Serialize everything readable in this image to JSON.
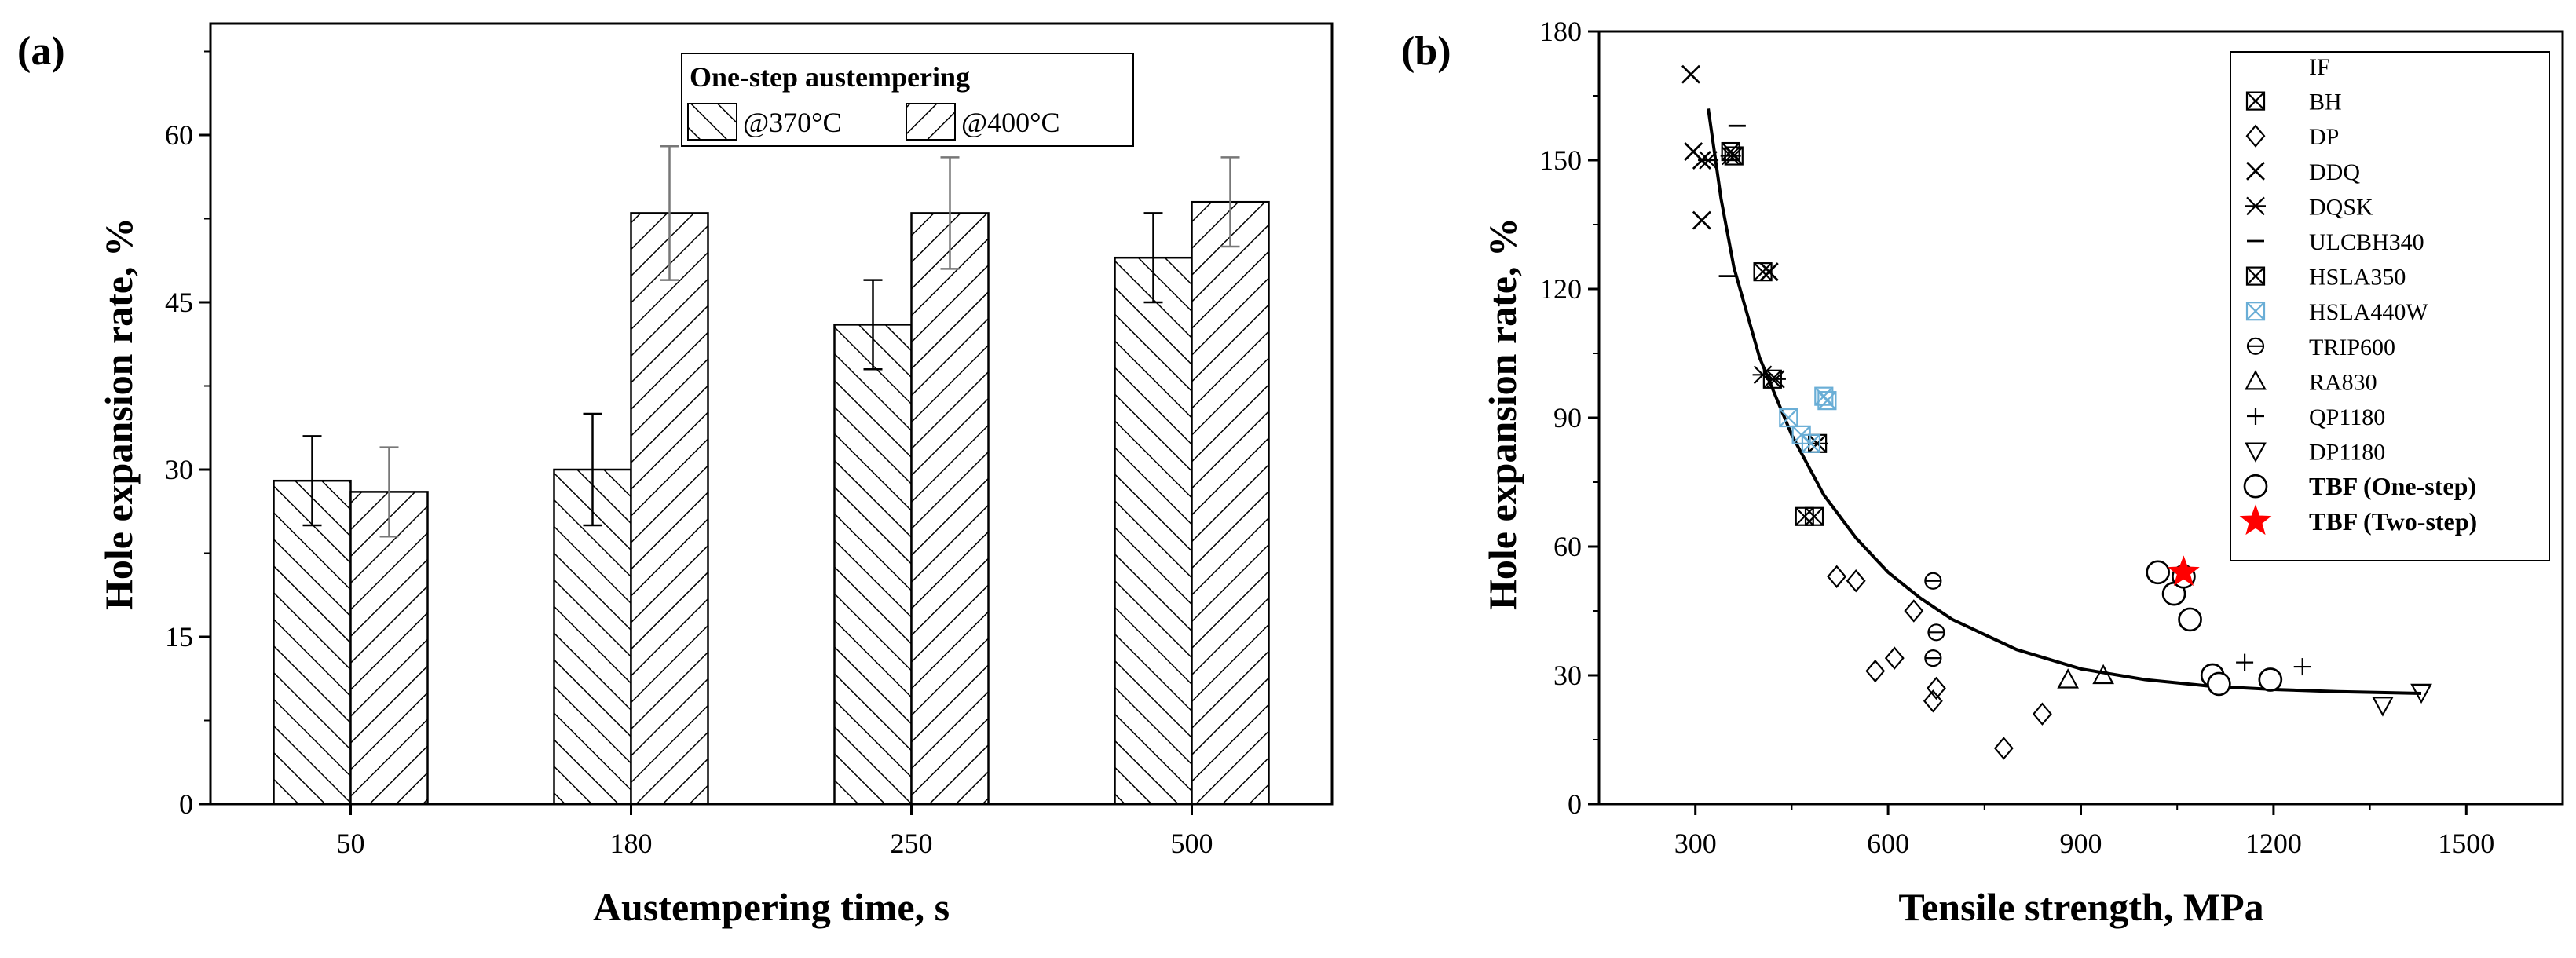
{
  "chart_data": [
    {
      "panel": "(a)",
      "type": "bar",
      "xlabel": "Austempering time, s",
      "ylabel": "Hole expansion rate, %",
      "categories": [
        "50",
        "180",
        "250",
        "500"
      ],
      "ylim": [
        0,
        70
      ],
      "yticks": [
        0,
        15,
        30,
        45,
        60
      ],
      "legend_title": "One-step austempering",
      "legend_position": "top-right",
      "series": [
        {
          "name": "@370°C",
          "hatch": "forward-diagonal",
          "values": [
            29,
            30,
            43,
            49
          ],
          "errors": [
            4,
            5,
            4,
            4
          ]
        },
        {
          "name": "@400°C",
          "hatch": "back-diagonal",
          "values": [
            28,
            53,
            53,
            54
          ],
          "errors": [
            4,
            6,
            5,
            4
          ]
        }
      ]
    },
    {
      "panel": "(b)",
      "type": "scatter",
      "xlabel": "Tensile strength, MPa",
      "ylabel": "Hole expansion rate, %",
      "xlim": [
        150,
        1650
      ],
      "ylim": [
        0,
        180
      ],
      "xticks": [
        300,
        600,
        900,
        1200,
        1500
      ],
      "yticks": [
        0,
        30,
        60,
        90,
        120,
        150,
        180
      ],
      "legend_position": "top-right",
      "fit_curve": {
        "description": "fitted trend line",
        "points": [
          [
            320,
            162
          ],
          [
            340,
            141
          ],
          [
            360,
            125
          ],
          [
            400,
            104
          ],
          [
            450,
            86
          ],
          [
            500,
            72
          ],
          [
            550,
            62
          ],
          [
            600,
            54
          ],
          [
            650,
            48
          ],
          [
            700,
            43
          ],
          [
            750,
            39.5
          ],
          [
            800,
            36
          ],
          [
            900,
            31.5
          ],
          [
            1000,
            29
          ],
          [
            1100,
            27.5
          ],
          [
            1200,
            26.7
          ],
          [
            1300,
            26.2
          ],
          [
            1430,
            25.8
          ]
        ]
      },
      "series": [
        {
          "name": "IF",
          "marker": "none",
          "color": "#000000",
          "points": []
        },
        {
          "name": "BH",
          "marker": "boxx",
          "color": "#000000",
          "points": [
            [
              355,
              152
            ],
            [
              360,
              151
            ]
          ]
        },
        {
          "name": "DP",
          "marker": "diamond",
          "color": "#000000",
          "points": [
            [
              520,
              53
            ],
            [
              550,
              52
            ],
            [
              580,
              31
            ],
            [
              610,
              34
            ],
            [
              640,
              45
            ],
            [
              670,
              24
            ],
            [
              675,
              27
            ],
            [
              780,
              13
            ],
            [
              840,
              21
            ]
          ]
        },
        {
          "name": "DDQ",
          "marker": "x",
          "color": "#000000",
          "points": [
            [
              293,
              170
            ],
            [
              297,
              152
            ],
            [
              310,
              136
            ],
            [
              310,
              150
            ],
            [
              415,
              124
            ]
          ]
        },
        {
          "name": "DQSK",
          "marker": "asterisk",
          "color": "#000000",
          "points": [
            [
              320,
              150
            ],
            [
              355,
              151
            ],
            [
              405,
              100
            ],
            [
              425,
              99
            ],
            [
              490,
              84
            ]
          ]
        },
        {
          "name": "ULCBH340",
          "marker": "dash",
          "color": "#000000",
          "points": [
            [
              350,
              123
            ],
            [
              365,
              158
            ]
          ]
        },
        {
          "name": "HSLA350",
          "marker": "boxx",
          "color": "#000000",
          "points": [
            [
              405,
              124
            ],
            [
              420,
              99
            ],
            [
              470,
              67
            ],
            [
              485,
              67
            ],
            [
              490,
              84
            ]
          ]
        },
        {
          "name": "HSLA440W",
          "marker": "boxx",
          "color": "#6aaed6",
          "points": [
            [
              445,
              90
            ],
            [
              465,
              86
            ],
            [
              480,
              84
            ],
            [
              500,
              95
            ],
            [
              505,
              94
            ]
          ]
        },
        {
          "name": "TRIP600",
          "marker": "circle-dash",
          "color": "#000000",
          "points": [
            [
              670,
              52
            ],
            [
              675,
              40
            ],
            [
              670,
              34
            ]
          ]
        },
        {
          "name": "RA830",
          "marker": "triangle-up",
          "color": "#000000",
          "points": [
            [
              880,
              29
            ],
            [
              935,
              30
            ]
          ]
        },
        {
          "name": "QP1180",
          "marker": "plus",
          "color": "#000000",
          "points": [
            [
              1155,
              33
            ],
            [
              1245,
              32
            ]
          ]
        },
        {
          "name": "DP1180",
          "marker": "triangle-down",
          "color": "#000000",
          "points": [
            [
              1370,
              23
            ],
            [
              1430,
              26
            ]
          ]
        },
        {
          "name": "TBF (One-step)",
          "marker": "circle",
          "color": "#000000",
          "points": [
            [
              1020,
              54
            ],
            [
              1045,
              49
            ],
            [
              1060,
              53
            ],
            [
              1070,
              43
            ],
            [
              1105,
              30
            ],
            [
              1115,
              28
            ],
            [
              1195,
              29
            ]
          ]
        },
        {
          "name": "TBF (Two-step)",
          "marker": "star",
          "color": "#ff0000",
          "points": [
            [
              1060,
              54
            ]
          ]
        }
      ]
    }
  ]
}
